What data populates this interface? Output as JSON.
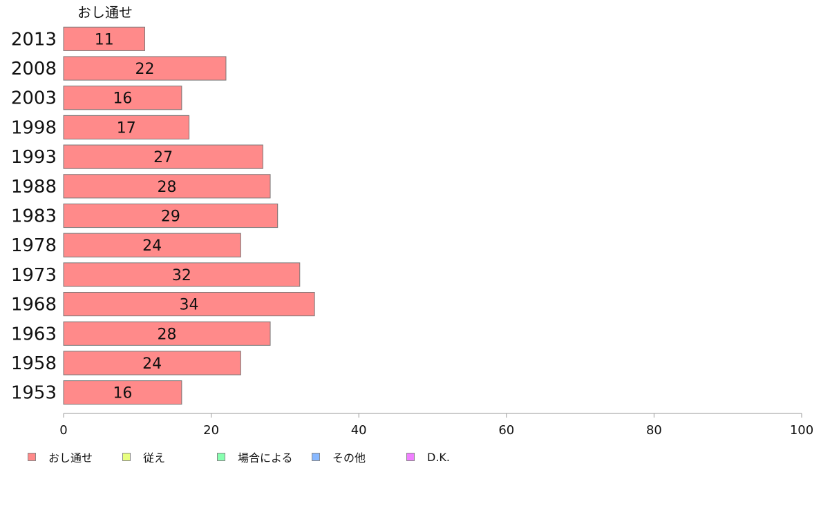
{
  "chart_data": {
    "type": "bar",
    "orientation": "horizontal",
    "categories": [
      "2013",
      "2008",
      "2003",
      "1998",
      "1993",
      "1988",
      "1983",
      "1978",
      "1973",
      "1968",
      "1963",
      "1958",
      "1953"
    ],
    "series": [
      {
        "name": "おし通せ",
        "color": "#ff8a8a",
        "values": [
          11,
          22,
          16,
          17,
          27,
          28,
          29,
          24,
          32,
          34,
          28,
          24,
          16
        ]
      }
    ],
    "series_header": "おし通せ",
    "xlim": [
      0,
      100
    ],
    "xticks": [
      0,
      20,
      40,
      60,
      80,
      100
    ],
    "grid": false,
    "legend_position": "bottom-left"
  },
  "legend": [
    {
      "label": "おし通せ",
      "color": "#ff8a8a"
    },
    {
      "label": "従え",
      "color": "#e8ff80"
    },
    {
      "label": "場合による",
      "color": "#88ffb0"
    },
    {
      "label": "その他",
      "color": "#88b8ff"
    },
    {
      "label": "D.K.",
      "color": "#f080ff"
    }
  ]
}
